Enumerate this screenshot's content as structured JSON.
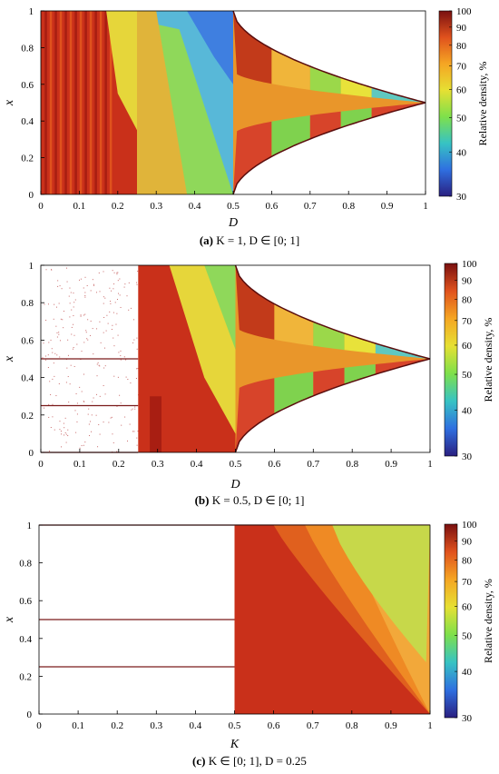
{
  "chart_data": [
    {
      "type": "heatmap",
      "panel": "(a)",
      "caption": "K = 1, D ∈ [0; 1]",
      "xlabel": "D",
      "ylabel": "x",
      "xlim": [
        0,
        1
      ],
      "ylim": [
        0,
        1
      ],
      "xticks": [
        "0",
        "0.1",
        "0.2",
        "0.3",
        "0.4",
        "0.5",
        "0.6",
        "0.7",
        "0.8",
        "0.9",
        "1"
      ],
      "yticks": [
        "0",
        "0.2",
        "0.4",
        "0.6",
        "0.8",
        "1"
      ],
      "colorbar": {
        "label": "Relative density, %",
        "ticks": [
          "30",
          "40",
          "50",
          "60",
          "70",
          "80",
          "90",
          "100"
        ],
        "range": [
          30,
          100
        ],
        "colormap": [
          "#2a1f80",
          "#2f6fe0",
          "#37c3c3",
          "#7ee04b",
          "#e6e033",
          "#f5a623",
          "#e0521d",
          "#7a1010"
        ]
      }
    },
    {
      "type": "heatmap",
      "panel": "(b)",
      "caption": "K = 0.5, D ∈ [0; 1]",
      "xlabel": "D",
      "ylabel": "x",
      "xlim": [
        0,
        1
      ],
      "ylim": [
        0,
        1
      ],
      "xticks": [
        "0",
        "0.1",
        "0.2",
        "0.3",
        "0.4",
        "0.5",
        "0.6",
        "0.7",
        "0.8",
        "0.9",
        "1"
      ],
      "yticks": [
        "0",
        "0.2",
        "0.4",
        "0.6",
        "0.8",
        "1"
      ],
      "colorbar": {
        "label": "Relative density, %",
        "ticks": [
          "30",
          "40",
          "50",
          "60",
          "70",
          "80",
          "90",
          "100"
        ],
        "range": [
          30,
          100
        ]
      }
    },
    {
      "type": "heatmap",
      "panel": "(c)",
      "caption": "K ∈ [0; 1], D = 0.25",
      "xlabel": "K",
      "ylabel": "x",
      "xlim": [
        0,
        1
      ],
      "ylim": [
        0,
        1
      ],
      "xticks": [
        "0",
        "0.1",
        "0.2",
        "0.3",
        "0.4",
        "0.5",
        "0.6",
        "0.7",
        "0.8",
        "0.9",
        "1"
      ],
      "yticks": [
        "0",
        "0.2",
        "0.4",
        "0.6",
        "0.8",
        "1"
      ],
      "colorbar": {
        "label": "Relative density, %",
        "ticks": [
          "30",
          "40",
          "50",
          "60",
          "70",
          "80",
          "90",
          "100"
        ],
        "range": [
          30,
          100
        ]
      }
    }
  ],
  "captions": [
    {
      "tag": "(a)",
      "text": "K = 1, D ∈ [0; 1]"
    },
    {
      "tag": "(b)",
      "text": "K = 0.5, D ∈ [0; 1]"
    },
    {
      "tag": "(c)",
      "text": "K ∈ [0; 1], D = 0.25"
    }
  ]
}
